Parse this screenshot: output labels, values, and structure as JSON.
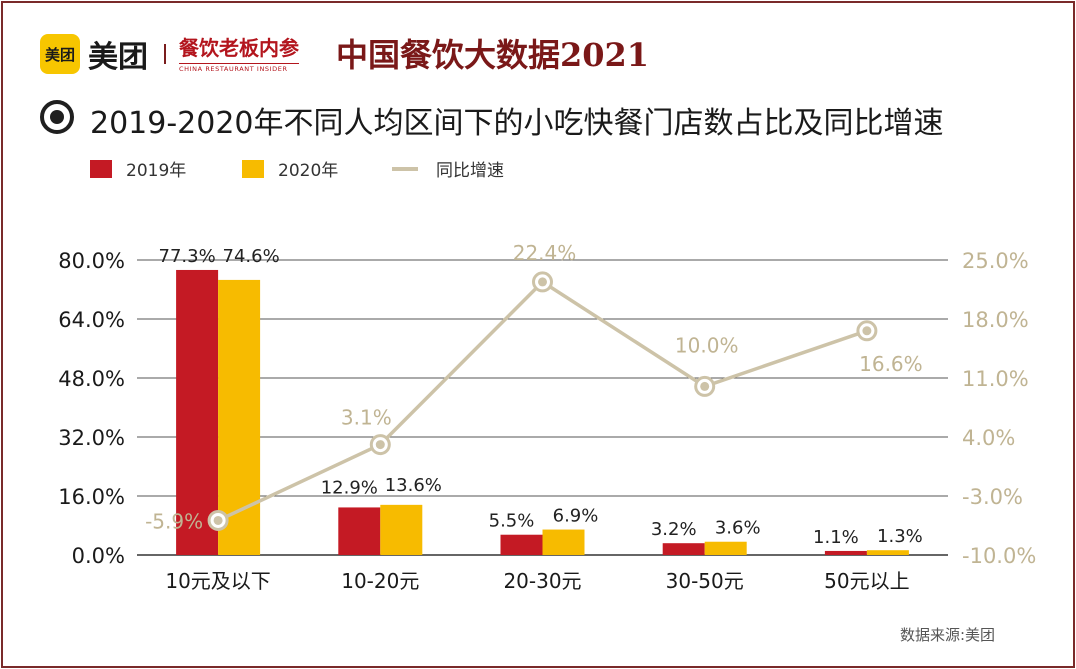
{
  "header": {
    "meituan_badge": "美团",
    "meituan_word": "美团",
    "partner_cn": "餐饮老板内参",
    "partner_en": "CHINA RESTAURANT INSIDER",
    "brand_title": "中国餐饮大数据2021"
  },
  "colors": {
    "series_2019": "#c41a24",
    "series_2020": "#f7bb00",
    "growth_line": "#cdc3a8",
    "growth_text": "#c0b493",
    "frame": "#7a2a2a"
  },
  "chart_data": {
    "type": "bar",
    "title": "2019-2020年不同人均区间下的小吃快餐门店数占比及同比增速",
    "categories": [
      "10元及以下",
      "10-20元",
      "20-30元",
      "30-50元",
      "50元以上"
    ],
    "series": [
      {
        "name": "2019年",
        "type": "bar",
        "axis": "left",
        "values": [
          77.3,
          12.9,
          5.5,
          3.2,
          1.1
        ],
        "labels": [
          "77.3%",
          "12.9%",
          "5.5%",
          "3.2%",
          "1.1%"
        ]
      },
      {
        "name": "2020年",
        "type": "bar",
        "axis": "left",
        "values": [
          74.6,
          13.6,
          6.9,
          3.6,
          1.3
        ],
        "labels": [
          "74.6%",
          "13.6%",
          "6.9%",
          "3.6%",
          "1.3%"
        ]
      },
      {
        "name": "同比增速",
        "type": "line",
        "axis": "right",
        "values": [
          -5.9,
          3.1,
          22.4,
          10.0,
          16.6
        ],
        "labels": [
          "-5.9%",
          "3.1%",
          "22.4%",
          "10.0%",
          "16.6%"
        ]
      }
    ],
    "y_left": {
      "range": [
        0,
        80
      ],
      "ticks": [
        "0.0%",
        "16.0%",
        "32.0%",
        "48.0%",
        "64.0%",
        "80.0%"
      ],
      "tick_values": [
        0,
        16,
        32,
        48,
        64,
        80
      ]
    },
    "y_right": {
      "range": [
        -10,
        25
      ],
      "ticks": [
        "-10.0%",
        "-3.0%",
        "4.0%",
        "11.0%",
        "18.0%",
        "25.0%"
      ],
      "tick_values": [
        -10,
        -3,
        4,
        11,
        18,
        25
      ]
    },
    "grid": true,
    "legend_position": "top-left"
  },
  "source": "数据来源:美团"
}
